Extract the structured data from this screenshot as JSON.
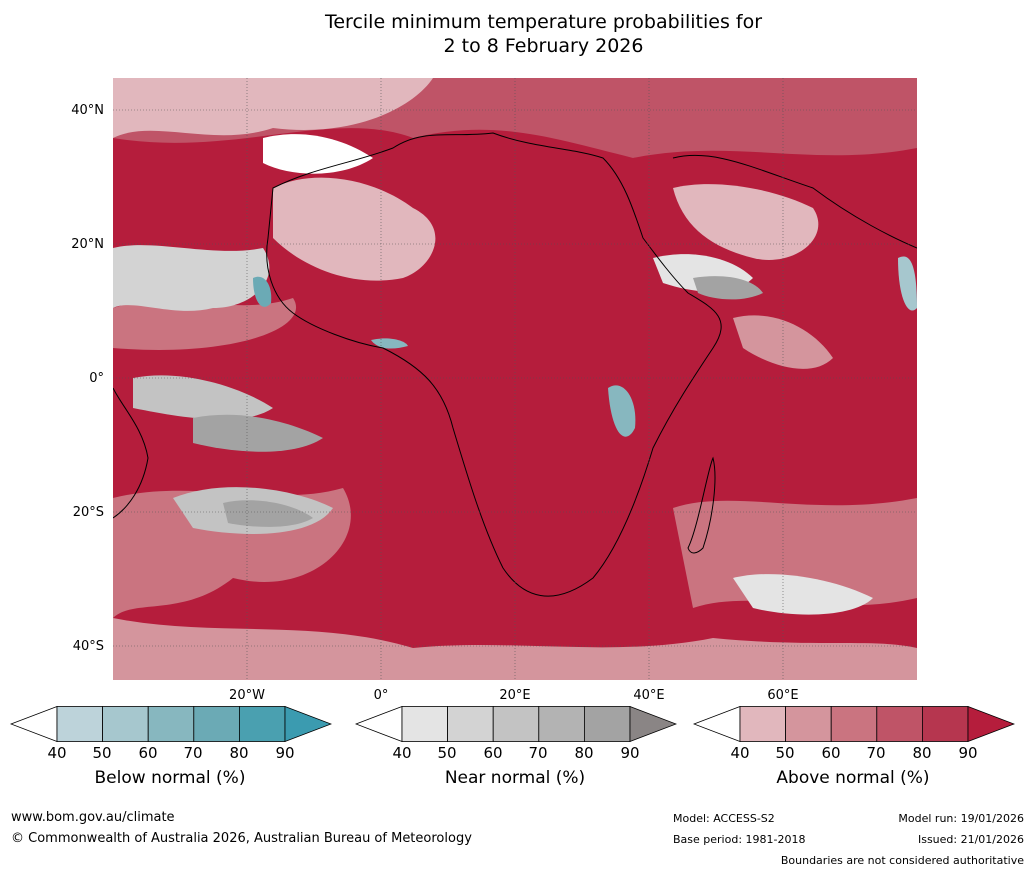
{
  "title_line1": "Tercile minimum temperature probabilities for",
  "title_line2": "2 to 8 February 2026",
  "lat_labels": [
    "40°N",
    "20°N",
    "0°",
    "20°S",
    "40°S"
  ],
  "lon_labels": [
    "20°W",
    "0°",
    "20°E",
    "40°E",
    "60°E"
  ],
  "colorbars": [
    {
      "title": "Below normal (%)",
      "ticks": [
        "40",
        "50",
        "60",
        "70",
        "80",
        "90"
      ],
      "colors": [
        "#bdd3da",
        "#a6c7ce",
        "#87b7bf",
        "#6baab5",
        "#4aa0b0"
      ],
      "low_color": "#ffffff",
      "high_color": "#3b9bb0"
    },
    {
      "title": "Near normal (%)",
      "ticks": [
        "40",
        "50",
        "60",
        "70",
        "80",
        "90"
      ],
      "colors": [
        "#e4e4e4",
        "#d3d3d3",
        "#c3c3c3",
        "#b3b3b3",
        "#a3a3a3"
      ],
      "low_color": "#ffffff",
      "high_color": "#8a8585"
    },
    {
      "title": "Above normal (%)",
      "ticks": [
        "40",
        "50",
        "60",
        "70",
        "80",
        "90"
      ],
      "colors": [
        "#e1b7bd",
        "#d4959d",
        "#ca7480",
        "#bf5467",
        "#b6364f"
      ],
      "low_color": "#ffffff",
      "high_color": "#b51d3c"
    }
  ],
  "footer": {
    "website": "www.bom.gov.au/climate",
    "copyright": "© Commonwealth of Australia 2026, Australian Bureau of Meteorology",
    "model": "Model: ACCESS-S2",
    "base_period": "Base period: 1981-2018",
    "model_run": "Model run: 19/01/2026",
    "issued": "Issued: 21/01/2026",
    "disclaimer": "Boundaries are not considered authoritative"
  }
}
